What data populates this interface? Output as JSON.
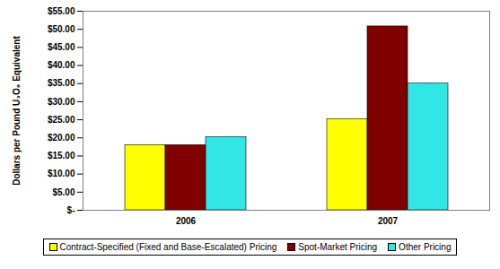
{
  "chart_data": {
    "type": "bar",
    "y_label": "Dollars per Pound U₃O₈ Equivalent",
    "categories": [
      "2006",
      "2007"
    ],
    "series": [
      {
        "name": "Contract-Specified (Fixed and Base-Escalated) Pricing",
        "color": "#ffff00",
        "values": [
          18.0,
          25.2
        ]
      },
      {
        "name": "Spot-Market Pricing",
        "color": "#800000",
        "values": [
          18.0,
          50.8
        ]
      },
      {
        "name": "Other Pricing",
        "color": "#33e6e6",
        "values": [
          20.2,
          35.0
        ]
      }
    ],
    "ylim": [
      0,
      55
    ],
    "yticks": [
      {
        "value": 0,
        "label": "$-"
      },
      {
        "value": 5,
        "label": "$5.00"
      },
      {
        "value": 10,
        "label": "$10.00"
      },
      {
        "value": 15,
        "label": "$15.00"
      },
      {
        "value": 20,
        "label": "$20.00"
      },
      {
        "value": 25,
        "label": "$25.00"
      },
      {
        "value": 30,
        "label": "$30.00"
      },
      {
        "value": 35,
        "label": "$35.00"
      },
      {
        "value": 40,
        "label": "$40.00"
      },
      {
        "value": 45,
        "label": "$45.00"
      },
      {
        "value": 50,
        "label": "$50.00"
      },
      {
        "value": 55,
        "label": "$55.00"
      }
    ],
    "grid": false,
    "legend": "bottom",
    "data_labels": false
  }
}
